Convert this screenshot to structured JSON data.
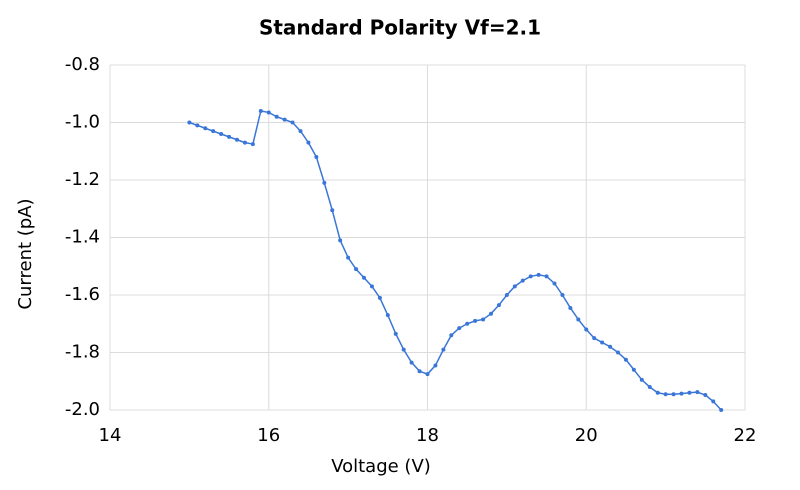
{
  "chart_data": {
    "type": "line",
    "title": "Standard Polarity Vf=2.1",
    "x_label": "Voltage (V)",
    "y_label": "Current (pA)",
    "x": [
      15.0,
      15.1,
      15.2,
      15.3,
      15.4,
      15.5,
      15.6,
      15.7,
      15.8,
      15.9,
      16.0,
      16.1,
      16.2,
      16.3,
      16.4,
      16.5,
      16.6,
      16.7,
      16.8,
      16.9,
      17.0,
      17.1,
      17.2,
      17.3,
      17.4,
      17.5,
      17.6,
      17.7,
      17.8,
      17.9,
      18.0,
      18.1,
      18.2,
      18.3,
      18.4,
      18.5,
      18.6,
      18.7,
      18.8,
      18.9,
      19.0,
      19.1,
      19.2,
      19.3,
      19.4,
      19.5,
      19.6,
      19.7,
      19.8,
      19.9,
      20.0,
      20.1,
      20.2,
      20.3,
      20.4,
      20.5,
      20.6,
      20.7,
      20.8,
      20.9,
      21.0,
      21.1,
      21.2,
      21.3,
      21.4,
      21.5,
      21.6,
      21.7
    ],
    "series": [
      {
        "name": "Current",
        "color": "#3a76d8",
        "values": [
          -1.0,
          -1.01,
          -1.02,
          -1.03,
          -1.04,
          -1.05,
          -1.06,
          -1.07,
          -1.075,
          -0.96,
          -0.965,
          -0.98,
          -0.99,
          -1.0,
          -1.03,
          -1.07,
          -1.12,
          -1.21,
          -1.305,
          -1.41,
          -1.47,
          -1.51,
          -1.54,
          -1.57,
          -1.61,
          -1.67,
          -1.735,
          -1.79,
          -1.835,
          -1.865,
          -1.875,
          -1.845,
          -1.79,
          -1.74,
          -1.715,
          -1.7,
          -1.69,
          -1.685,
          -1.665,
          -1.635,
          -1.6,
          -1.57,
          -1.55,
          -1.535,
          -1.53,
          -1.535,
          -1.56,
          -1.6,
          -1.645,
          -1.685,
          -1.72,
          -1.75,
          -1.765,
          -1.78,
          -1.8,
          -1.825,
          -1.86,
          -1.895,
          -1.92,
          -1.94,
          -1.945,
          -1.945,
          -1.943,
          -1.94,
          -1.938,
          -1.948,
          -1.97,
          -2.0
        ]
      }
    ],
    "xlim": [
      14,
      22
    ],
    "xticks": [
      14,
      16,
      18,
      20,
      22
    ],
    "ylim": [
      -2.0,
      -0.8
    ],
    "yticks": [
      {
        "value": -2.0,
        "label": "-2.0"
      },
      -1.8,
      -1.6,
      -1.4,
      -1.2,
      {
        "value": -1.0,
        "label": "-1.0"
      },
      -0.8
    ],
    "grid": true
  }
}
